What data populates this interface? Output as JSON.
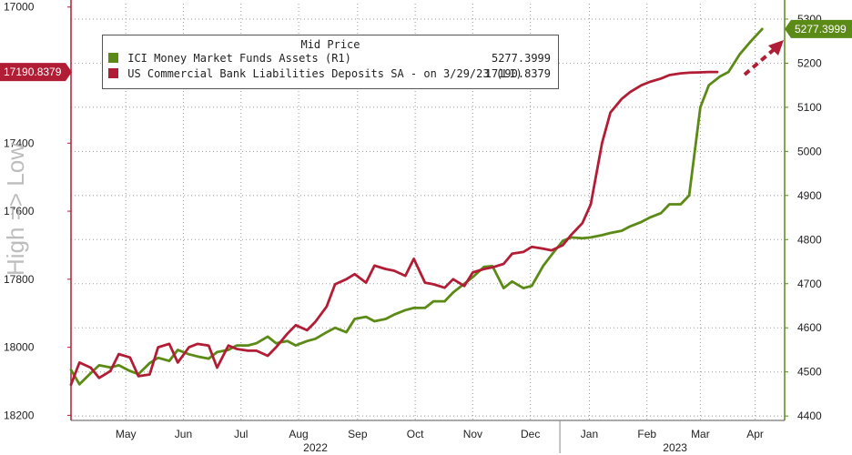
{
  "chart_data": {
    "type": "line",
    "ylabel_left": "High => Low",
    "left_axis": {
      "ticks": [
        17000,
        17400,
        17600,
        17800,
        18000,
        18200
      ],
      "range": [
        16990,
        18215
      ],
      "inverted": true
    },
    "right_axis": {
      "ticks": [
        4400,
        4500,
        4600,
        4700,
        4800,
        4900,
        5000,
        5100,
        5200,
        5300
      ],
      "range": [
        4390,
        5335
      ]
    },
    "x_labels": [
      {
        "label": "May",
        "t": 19.5
      },
      {
        "label": "Jun",
        "t": 40
      },
      {
        "label": "Jul",
        "t": 60.5
      },
      {
        "label": "Aug",
        "t": 81
      },
      {
        "label": "Sep",
        "t": 102
      },
      {
        "label": "Oct",
        "t": 122.5
      },
      {
        "label": "Nov",
        "t": 143
      },
      {
        "label": "Dec",
        "t": 163.5
      },
      {
        "label": "Jan",
        "t": 184.5
      },
      {
        "label": "Feb",
        "t": 205
      },
      {
        "label": "Mar",
        "t": 224
      },
      {
        "label": "Apr",
        "t": 243.5
      }
    ],
    "year_labels": [
      {
        "label": "2022",
        "t": 87
      },
      {
        "label": "2023",
        "t": 215
      }
    ],
    "year_divider_t": 174,
    "x_range": [
      0,
      254
    ],
    "grid": true,
    "legend": {
      "title": "Mid Price",
      "placement": "top-left",
      "entries": [
        {
          "name": "ICI Money Market Funds Assets  (R1)",
          "value": "5277.3999"
        },
        {
          "name": "US Commercial Bank Liabilities Deposits SA -  on 3/29/23  (L1)",
          "value": "17190.8379"
        }
      ]
    },
    "last_value_tags": {
      "left": "17190.8379",
      "right": "5277.3999"
    },
    "colors": {
      "money_market": "#5c8a16",
      "deposits": "#b21d36",
      "right_axis": "#5c8a16",
      "left_tag": "#b21d36"
    },
    "series": [
      {
        "name": "ICI Money Market Funds Assets  (R1)",
        "axis": "right",
        "color": "#5c8a16",
        "x": [
          0,
          3,
          7,
          10,
          14,
          17,
          21,
          24,
          28,
          31,
          35,
          38,
          42,
          45,
          49,
          52,
          56,
          59,
          63,
          66,
          70,
          73,
          77,
          80,
          84,
          87,
          91,
          94,
          98,
          101,
          105,
          108,
          112,
          115,
          119,
          122,
          126,
          129,
          133,
          136,
          140,
          143,
          147,
          150,
          154,
          157,
          161,
          164,
          168,
          171,
          175,
          178,
          182,
          185,
          189,
          192,
          196,
          199,
          203,
          206,
          210,
          213,
          217,
          220,
          224,
          227,
          231,
          234,
          238,
          242,
          246
        ],
        "values": [
          4505,
          4472,
          4497,
          4515,
          4510,
          4515,
          4502,
          4495,
          4520,
          4532,
          4525,
          4550,
          4540,
          4535,
          4530,
          4545,
          4550,
          4560,
          4560,
          4565,
          4580,
          4565,
          4570,
          4560,
          4570,
          4575,
          4590,
          4600,
          4590,
          4620,
          4625,
          4615,
          4620,
          4630,
          4640,
          4645,
          4645,
          4660,
          4660,
          4680,
          4700,
          4715,
          4738,
          4740,
          4690,
          4705,
          4690,
          4695,
          4740,
          4765,
          4797,
          4805,
          4803,
          4805,
          4810,
          4815,
          4820,
          4830,
          4840,
          4850,
          4860,
          4880,
          4880,
          4900,
          5100,
          5150,
          5170,
          5180,
          5220,
          5250,
          5277.3999
        ]
      },
      {
        "name": "US Commercial Bank Liabilities Deposits SA -  on 3/29/23  (L1)",
        "axis": "left",
        "color": "#b21d36",
        "x": [
          0,
          3,
          7,
          10,
          14,
          17,
          21,
          24,
          28,
          31,
          35,
          38,
          42,
          45,
          49,
          52,
          56,
          59,
          63,
          66,
          70,
          73,
          77,
          80,
          84,
          87,
          91,
          94,
          98,
          101,
          105,
          108,
          112,
          115,
          119,
          122,
          126,
          129,
          133,
          136,
          140,
          143,
          147,
          150,
          154,
          157,
          161,
          164,
          168,
          171,
          175,
          178,
          182,
          185,
          189,
          192,
          196,
          199,
          203,
          206,
          210,
          213,
          217,
          220,
          224,
          227,
          230
        ],
        "values": [
          18110,
          18045,
          18060,
          18090,
          18070,
          18020,
          18030,
          18085,
          18080,
          18000,
          17990,
          18045,
          18000,
          17990,
          17995,
          18060,
          17995,
          18005,
          18010,
          18010,
          18025,
          18000,
          17960,
          17935,
          17950,
          17925,
          17880,
          17815,
          17800,
          17785,
          17810,
          17760,
          17770,
          17775,
          17790,
          17740,
          17810,
          17815,
          17825,
          17800,
          17820,
          17780,
          17770,
          17765,
          17755,
          17725,
          17720,
          17705,
          17710,
          17715,
          17700,
          17670,
          17635,
          17580,
          17400,
          17310,
          17270,
          17250,
          17230,
          17220,
          17210,
          17200,
          17195,
          17193,
          17192,
          17191,
          17190.8379
        ]
      }
    ]
  }
}
